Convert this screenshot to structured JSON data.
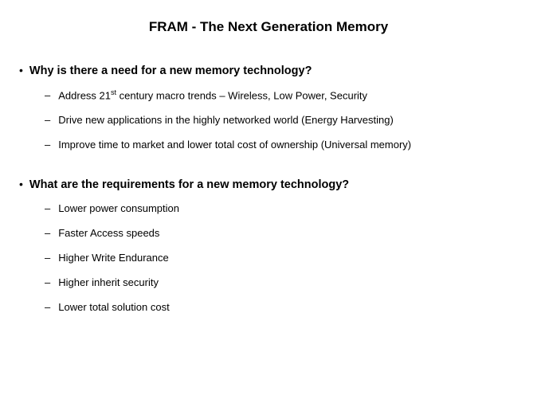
{
  "title": "FRAM - The Next Generation Memory",
  "sections": [
    {
      "question": "Why is there a need for a new memory technology?",
      "items_html": [
        "Address 21<sup>st</sup> century macro trends – Wireless, Low Power, Security",
        "Drive new applications in the highly networked world (Energy Harvesting)",
        "Improve time to market and lower total cost of ownership (Universal memory)"
      ]
    },
    {
      "question": "What are the requirements  for a new memory technology?",
      "items_html": [
        "Lower power consumption",
        "Faster Access speeds",
        "Higher Write Endurance",
        "Higher inherit security",
        "Lower total solution cost"
      ]
    }
  ],
  "colors": {
    "background": "#ffffff",
    "text": "#000000"
  }
}
